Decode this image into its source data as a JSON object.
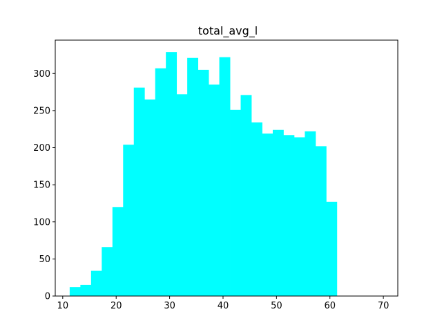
{
  "chart_data": {
    "type": "bar",
    "title": "total_avg_l",
    "xlabel": "",
    "ylabel": "",
    "xlim": [
      8.6,
      72.7
    ],
    "ylim": [
      0,
      345
    ],
    "x_ticks": [
      10,
      20,
      30,
      40,
      50,
      60,
      70
    ],
    "y_ticks": [
      0,
      50,
      100,
      150,
      200,
      250,
      300
    ],
    "bar_color": "#00ffff",
    "grid": false,
    "bins": [
      {
        "x0": 11.3,
        "x1": 13.3,
        "value": 12
      },
      {
        "x0": 13.3,
        "x1": 15.3,
        "value": 15
      },
      {
        "x0": 15.3,
        "x1": 17.3,
        "value": 34
      },
      {
        "x0": 17.3,
        "x1": 19.3,
        "value": 66
      },
      {
        "x0": 19.3,
        "x1": 21.3,
        "value": 120
      },
      {
        "x0": 21.3,
        "x1": 23.3,
        "value": 204
      },
      {
        "x0": 23.3,
        "x1": 25.3,
        "value": 281
      },
      {
        "x0": 25.3,
        "x1": 27.3,
        "value": 265
      },
      {
        "x0": 27.3,
        "x1": 29.3,
        "value": 307
      },
      {
        "x0": 29.3,
        "x1": 31.3,
        "value": 329
      },
      {
        "x0": 31.3,
        "x1": 33.3,
        "value": 272
      },
      {
        "x0": 33.3,
        "x1": 35.3,
        "value": 321
      },
      {
        "x0": 35.3,
        "x1": 37.3,
        "value": 305
      },
      {
        "x0": 37.3,
        "x1": 39.3,
        "value": 285
      },
      {
        "x0": 39.3,
        "x1": 41.3,
        "value": 322
      },
      {
        "x0": 41.3,
        "x1": 43.3,
        "value": 251
      },
      {
        "x0": 43.3,
        "x1": 45.3,
        "value": 271
      },
      {
        "x0": 45.3,
        "x1": 47.3,
        "value": 234
      },
      {
        "x0": 47.3,
        "x1": 49.3,
        "value": 219
      },
      {
        "x0": 49.3,
        "x1": 51.3,
        "value": 224
      },
      {
        "x0": 51.3,
        "x1": 53.3,
        "value": 217
      },
      {
        "x0": 53.3,
        "x1": 55.3,
        "value": 214
      },
      {
        "x0": 55.3,
        "x1": 57.3,
        "value": 222
      },
      {
        "x0": 57.3,
        "x1": 59.3,
        "value": 202
      },
      {
        "x0": 59.3,
        "x1": 61.3,
        "value": 127
      }
    ]
  }
}
